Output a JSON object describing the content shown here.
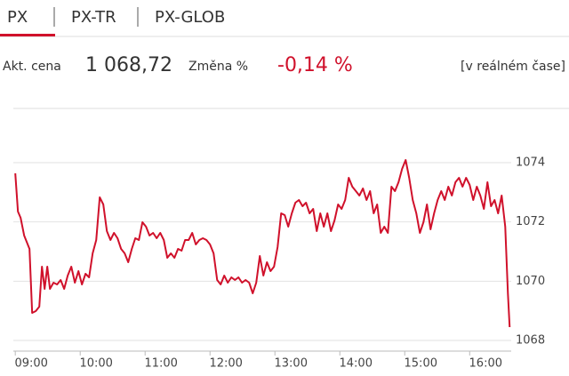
{
  "tabs": [
    "PX",
    "PX-TR",
    "PX-GLOB"
  ],
  "quote": {
    "price_label": "Akt. cena",
    "price": "1 068,72",
    "change_label": "Změna %",
    "change": "-0,14 %",
    "realtime": "[v reálném čase]"
  },
  "chart_data": {
    "type": "line",
    "color": "#d0112b",
    "grid": true,
    "xlim": [
      8.97,
      16.64
    ],
    "ylim": [
      1067.64,
      1074.54
    ],
    "xticks": [
      {
        "value": 9,
        "label": "09:00"
      },
      {
        "value": 10,
        "label": "10:00"
      },
      {
        "value": 11,
        "label": "11:00"
      },
      {
        "value": 12,
        "label": "12:00"
      },
      {
        "value": 13,
        "label": "13:00"
      },
      {
        "value": 14,
        "label": "14:00"
      },
      {
        "value": 15,
        "label": "15:00"
      },
      {
        "value": 16,
        "label": "16:00"
      }
    ],
    "yticks": [
      1068,
      1070,
      1072,
      1074
    ],
    "x": [
      9,
      9.041,
      9.082,
      9.137,
      9.219,
      9.26,
      9.315,
      9.37,
      9.411,
      9.452,
      9.493,
      9.534,
      9.589,
      9.644,
      9.699,
      9.753,
      9.808,
      9.863,
      9.918,
      9.973,
      10.027,
      10.082,
      10.137,
      10.192,
      10.247,
      10.301,
      10.356,
      10.411,
      10.466,
      10.521,
      10.575,
      10.63,
      10.685,
      10.74,
      10.795,
      10.849,
      10.904,
      10.959,
      11.014,
      11.068,
      11.123,
      11.178,
      11.233,
      11.288,
      11.342,
      11.397,
      11.452,
      11.507,
      11.562,
      11.616,
      11.671,
      11.726,
      11.781,
      11.836,
      11.89,
      11.945,
      12,
      12.055,
      12.11,
      12.164,
      12.219,
      12.274,
      12.329,
      12.384,
      12.438,
      12.493,
      12.548,
      12.603,
      12.658,
      12.712,
      12.767,
      12.822,
      12.877,
      12.932,
      12.986,
      13.041,
      13.096,
      13.151,
      13.205,
      13.26,
      13.315,
      13.37,
      13.425,
      13.479,
      13.534,
      13.589,
      13.644,
      13.699,
      13.753,
      13.808,
      13.863,
      13.918,
      13.973,
      14.027,
      14.082,
      14.137,
      14.192,
      14.247,
      14.301,
      14.356,
      14.411,
      14.466,
      14.521,
      14.575,
      14.63,
      14.685,
      14.74,
      14.795,
      14.849,
      14.904,
      14.959,
      15.014,
      15.068,
      15.123,
      15.178,
      15.233,
      15.288,
      15.342,
      15.397,
      15.452,
      15.507,
      15.562,
      15.616,
      15.671,
      15.726,
      15.781,
      15.836,
      15.89,
      15.945,
      16,
      16.055,
      16.11,
      16.164,
      16.219,
      16.274,
      16.329,
      16.384,
      16.438,
      16.493,
      16.548,
      16.589,
      16.616
    ],
    "values": [
      1073.64,
      1072.35,
      1072.14,
      1071.54,
      1071.09,
      1068.93,
      1068.99,
      1069.14,
      1070.49,
      1069.74,
      1070.49,
      1069.74,
      1069.95,
      1069.89,
      1070.04,
      1069.74,
      1070.19,
      1070.49,
      1069.95,
      1070.34,
      1069.89,
      1070.25,
      1070.13,
      1070.94,
      1071.39,
      1072.83,
      1072.59,
      1071.69,
      1071.39,
      1071.63,
      1071.45,
      1071.09,
      1070.94,
      1070.64,
      1071.09,
      1071.45,
      1071.39,
      1071.99,
      1071.84,
      1071.54,
      1071.63,
      1071.45,
      1071.63,
      1071.39,
      1070.79,
      1070.94,
      1070.79,
      1071.09,
      1071.03,
      1071.39,
      1071.39,
      1071.63,
      1071.24,
      1071.39,
      1071.45,
      1071.39,
      1071.24,
      1070.94,
      1070.04,
      1069.89,
      1070.19,
      1069.95,
      1070.13,
      1070.04,
      1070.13,
      1069.95,
      1070.04,
      1069.95,
      1069.59,
      1069.95,
      1070.85,
      1070.19,
      1070.64,
      1070.34,
      1070.49,
      1071.15,
      1072.29,
      1072.23,
      1071.84,
      1072.29,
      1072.65,
      1072.74,
      1072.53,
      1072.65,
      1072.29,
      1072.44,
      1071.69,
      1072.29,
      1071.84,
      1072.29,
      1071.69,
      1072.05,
      1072.59,
      1072.44,
      1072.74,
      1073.49,
      1073.19,
      1073.04,
      1072.89,
      1073.13,
      1072.74,
      1073.04,
      1072.29,
      1072.59,
      1071.63,
      1071.84,
      1071.63,
      1073.19,
      1073.04,
      1073.34,
      1073.79,
      1074.09,
      1073.49,
      1072.74,
      1072.29,
      1071.63,
      1071.99,
      1072.59,
      1071.75,
      1072.29,
      1072.74,
      1073.04,
      1072.74,
      1073.19,
      1072.89,
      1073.34,
      1073.49,
      1073.19,
      1073.49,
      1073.25,
      1072.74,
      1073.19,
      1072.89,
      1072.44,
      1073.34,
      1072.53,
      1072.74,
      1072.29,
      1072.89,
      1071.84,
      1069.59,
      1068.45
    ]
  }
}
